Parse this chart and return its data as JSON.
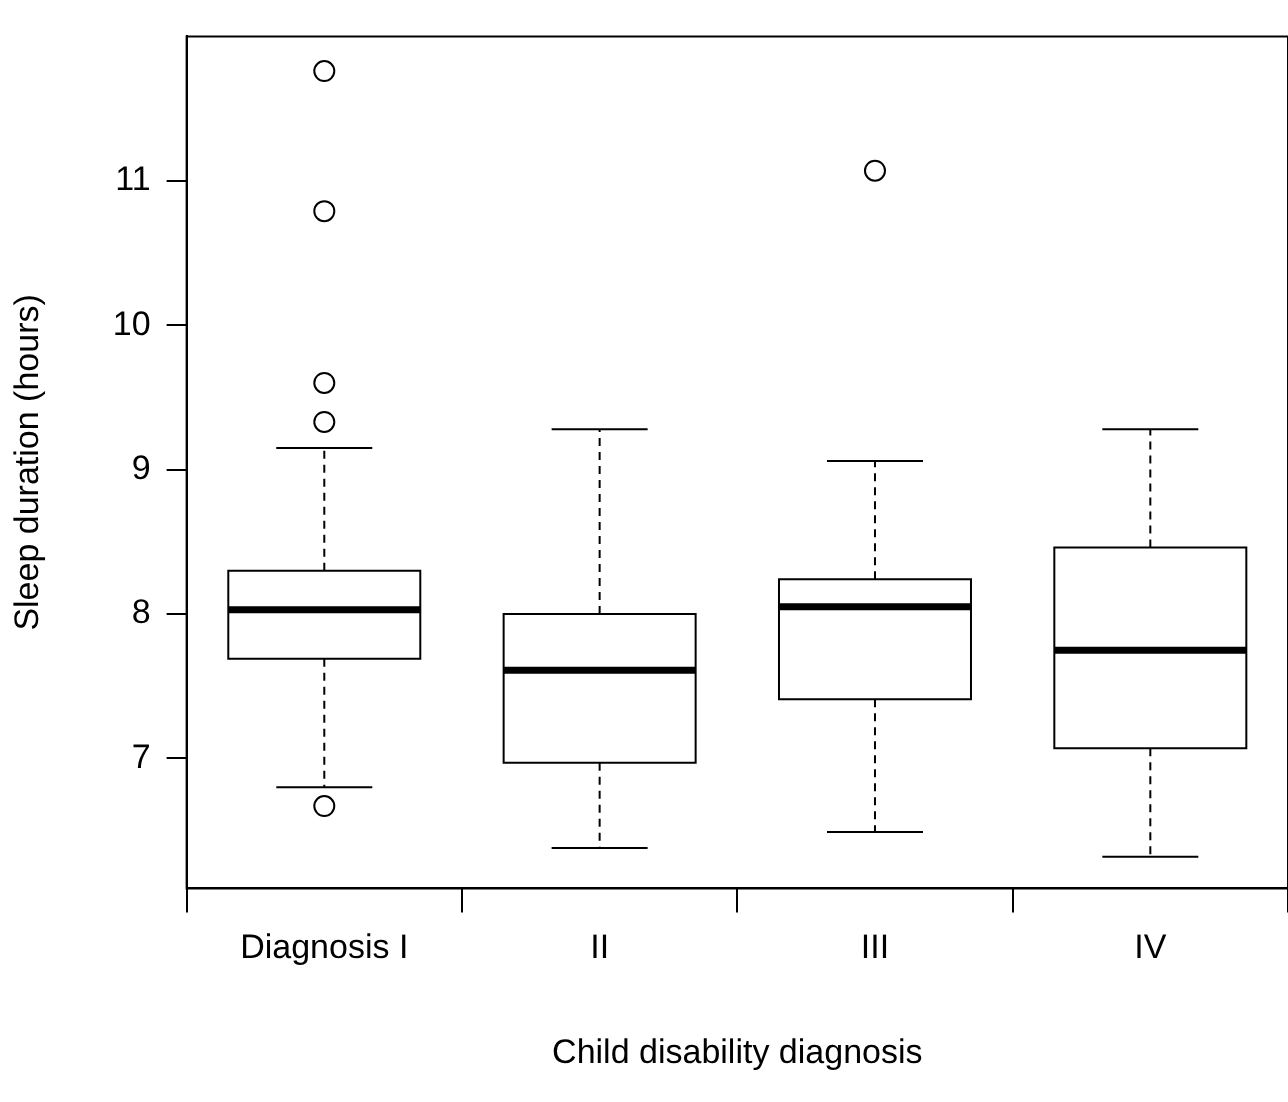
{
  "chart_data": {
    "type": "box",
    "xlabel": "Child disability diagnosis",
    "ylabel": "Sleep duration (hours)",
    "categories": [
      "Diagnosis I",
      "II",
      "III",
      "IV"
    ],
    "boxes": [
      {
        "low": 6.8,
        "q1": 7.69,
        "median": 8.03,
        "q3": 8.3,
        "high": 9.15,
        "outliers": [
          11.76,
          10.79,
          9.6,
          9.33,
          6.67
        ]
      },
      {
        "low": 6.38,
        "q1": 6.97,
        "median": 7.61,
        "q3": 8.0,
        "high": 9.28
      },
      {
        "low": 6.49,
        "q1": 7.41,
        "median": 8.05,
        "q3": 8.24,
        "high": 9.06,
        "outliers": [
          11.07
        ]
      },
      {
        "low": 6.32,
        "q1": 7.07,
        "median": 7.75,
        "q3": 8.46,
        "high": 9.28
      }
    ],
    "ylim": [
      6.1,
      12.0
    ],
    "yticks": [
      7,
      8,
      9,
      10,
      11
    ],
    "grid": false,
    "legend": false
  }
}
